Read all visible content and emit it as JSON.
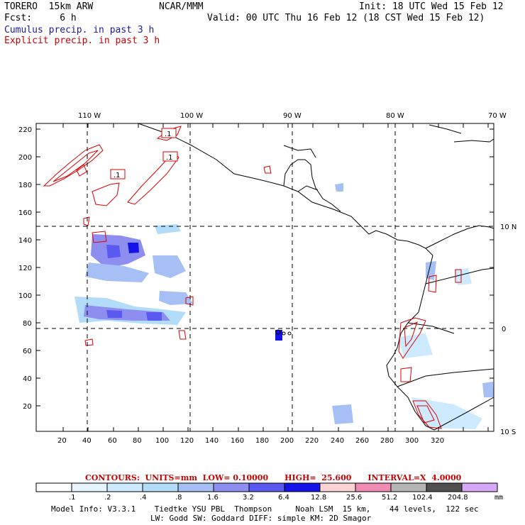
{
  "header": {
    "model": "TORERO  15km ARW",
    "forecast": "Fcst:     6 h",
    "org": "NCAR/MMM",
    "init": "Init: 18 UTC Wed 15 Feb 12",
    "valid": "Valid: 00 UTC Thu 16 Feb 12 (18 CST Wed 15 Feb 12)"
  },
  "legend": {
    "cumulus": "Cumulus precip. in past 3 h",
    "explicit": "Explicit precip. in past 3 h"
  },
  "map": {
    "x_ticks": [
      "20",
      "40",
      "60",
      "80",
      "100",
      "120",
      "140",
      "160",
      "180",
      "200",
      "220",
      "240",
      "260",
      "280",
      "300",
      "320"
    ],
    "y_ticks": [
      "20",
      "40",
      "60",
      "80",
      "100",
      "120",
      "140",
      "160",
      "180",
      "200",
      "220"
    ],
    "lon_labels": [
      "110 W",
      "100 W",
      "90 W",
      "80 W",
      "70 W"
    ],
    "lat_labels": [
      "10 N",
      "0",
      "10 S"
    ],
    "contour_tags": [
      ".1",
      ".1",
      ".1"
    ],
    "colors": {
      "coast": "#000000",
      "explicit_contour": "#dd0000",
      "grid": "#000000"
    }
  },
  "contour_info": "CONTOURS:  UNITS=mm  LOW= 0.10000      HIGH=  25.600      INTERVAL=X  4.0000",
  "colorbar": {
    "labels": [
      ".1",
      ".2",
      ".4",
      ".8",
      "1.6",
      "3.2",
      "6.4",
      "12.8",
      "25.6",
      "51.2",
      "102.4",
      "204.8"
    ],
    "colors": [
      "#ffffff",
      "#e6f4ff",
      "#cdeaff",
      "#b2dcf7",
      "#a6bff4",
      "#8e8ef0",
      "#5a5af0",
      "#1414e8",
      "#fcd4d4",
      "#f08cb4",
      "#b4b4b4",
      "#505050",
      "#d8a8f8"
    ],
    "unit": "mm"
  },
  "model_info": {
    "line1": "Model Info: V3.3.1    Tiedtke YSU PBL  Thompson     Noah LSM  15 km,    44 levels,  122 sec",
    "line2": "LW: Godd SW: Goddard DIFF: simple KM: 2D Smagor"
  }
}
